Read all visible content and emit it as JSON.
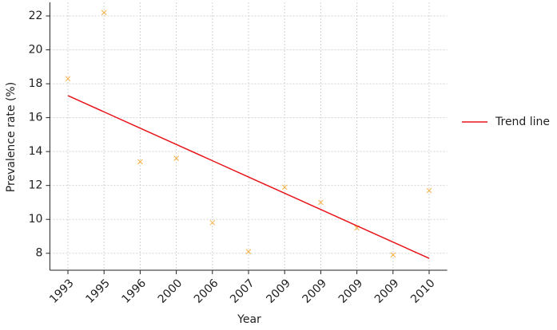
{
  "chart_data": {
    "type": "scatter",
    "x_label": "Year",
    "y_label": "Prevalence rate (%)",
    "categories": [
      "1993",
      "1995",
      "1996",
      "2000",
      "2006",
      "2007",
      "2009",
      "2009",
      "2009",
      "2009",
      "2010"
    ],
    "series": [
      {
        "color": "#f5b041",
        "marker": "x",
        "values": [
          18.3,
          22.2,
          13.4,
          13.6,
          9.8,
          8.1,
          11.9,
          11.0,
          9.5,
          7.9,
          11.7
        ]
      },
      {
        "name": "Trend line",
        "color": "#e8141b",
        "marker": "line",
        "values": [
          17.3,
          16.34,
          15.38,
          14.42,
          13.46,
          12.5,
          11.54,
          10.58,
          9.62,
          8.66,
          7.7
        ]
      }
    ],
    "ylim": [
      7,
      22.8
    ],
    "yticks": [
      8,
      10,
      12,
      14,
      16,
      18,
      20,
      22
    ],
    "grid": true,
    "legend": "right"
  }
}
